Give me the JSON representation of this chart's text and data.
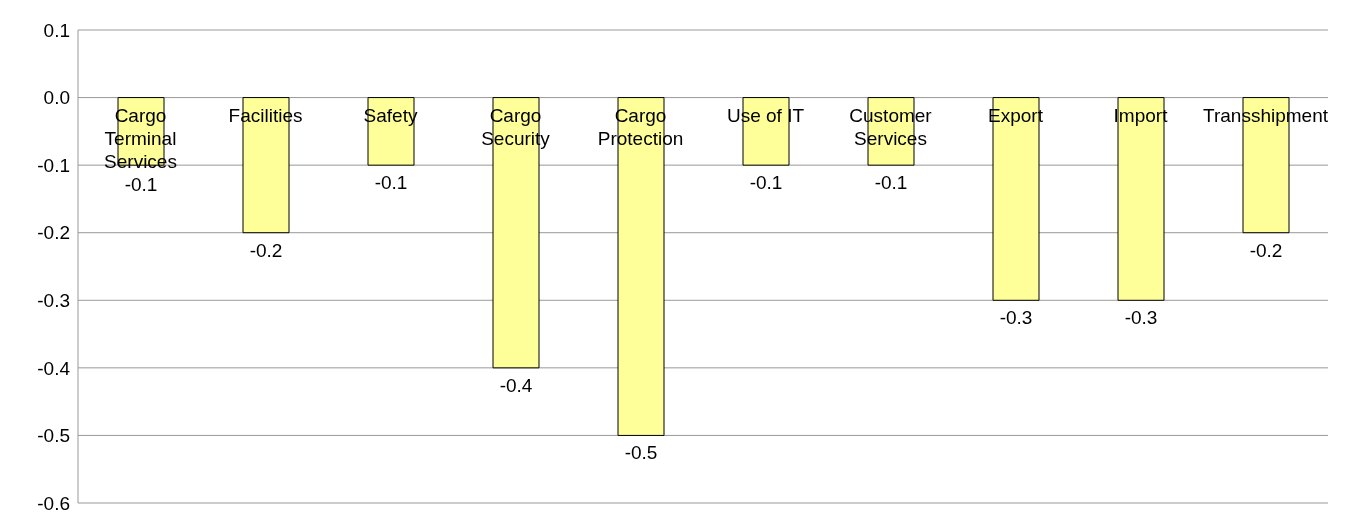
{
  "chart_data": {
    "type": "bar",
    "categories": [
      "Cargo Terminal Services",
      "Facilities",
      "Safety",
      "Cargo Security",
      "Cargo Protection",
      "Use of IT",
      "Customer Services",
      "Export",
      "Import",
      "Transshipment"
    ],
    "values": [
      -0.1,
      -0.2,
      -0.1,
      -0.4,
      -0.5,
      -0.1,
      -0.1,
      -0.3,
      -0.3,
      -0.2
    ],
    "color": "#ffff99",
    "ylim": [
      -0.6,
      0.1
    ],
    "yticks": [
      0.1,
      {
        "value": 0,
        "label": "0.0"
      },
      -0.1,
      -0.2,
      -0.3,
      -0.4,
      -0.5,
      -0.6
    ],
    "grid": "y",
    "data_labels": true
  }
}
